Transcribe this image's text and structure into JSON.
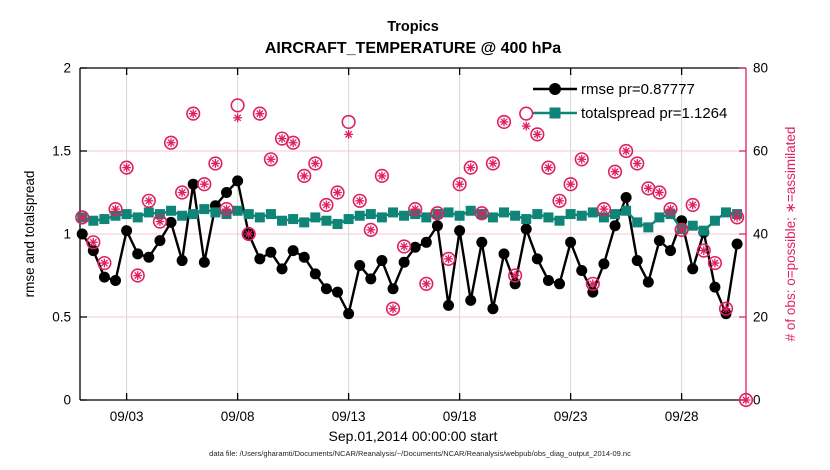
{
  "chart_data": {
    "type": "line",
    "title": "Tropics",
    "subtitle": "AIRCRAFT_TEMPERATURE @ 400 hPa",
    "xlabel": "Sep.01,2014 00:00:00 start",
    "ylabel_left": "rmse and totalspread",
    "ylabel_right": "# of obs: o=possible; ∗=assimilated",
    "footer": "data file: /Users/gharamti/Documents/NCAR/Reanalysis/~/Documents/NCAR/Reanalysis/webpub/obs_diag_output_2014-09.nc",
    "grid": true,
    "legend_position": "top-right-inside",
    "legend": [
      {
        "label": "rmse pr=0.87777",
        "marker": "circle",
        "color": "#000000"
      },
      {
        "label": "totalspread pr=1.1264",
        "marker": "square",
        "color": "#0e8577"
      }
    ],
    "x_axis": {
      "tick_labels": [
        "09/03",
        "09/08",
        "09/13",
        "09/18",
        "09/23",
        "09/28"
      ],
      "tick_days": [
        3,
        8,
        13,
        18,
        23,
        28
      ],
      "range_days": [
        0.9,
        30.9
      ]
    },
    "y_axis_left": {
      "ylim": [
        0,
        2
      ],
      "tick_labels": [
        "0",
        "0.5",
        "1",
        "1.5",
        "2"
      ],
      "tick_vals": [
        0,
        0.5,
        1,
        1.5,
        2
      ]
    },
    "y_axis_right": {
      "ylim": [
        0,
        80
      ],
      "tick_labels": [
        "0",
        "20",
        "40",
        "60",
        "80"
      ],
      "tick_vals": [
        0,
        20,
        40,
        60,
        80
      ]
    },
    "series_days": [
      1,
      1.5,
      2,
      2.5,
      3,
      3.5,
      4,
      4.5,
      5,
      5.5,
      6,
      6.5,
      7,
      7.5,
      8,
      8.5,
      9,
      9.5,
      10,
      10.5,
      11,
      11.5,
      12,
      12.5,
      13,
      13.5,
      14,
      14.5,
      15,
      15.5,
      16,
      16.5,
      17,
      17.5,
      18,
      18.5,
      19,
      19.5,
      20,
      20.5,
      21,
      21.5,
      22,
      22.5,
      23,
      23.5,
      24,
      24.5,
      25,
      25.5,
      26,
      26.5,
      27,
      27.5,
      28,
      28.5,
      29,
      29.5,
      30,
      30.5
    ],
    "series": [
      {
        "name": "rmse",
        "color": "#000000",
        "marker": "circle",
        "values": [
          1.0,
          0.9,
          0.74,
          0.72,
          1.02,
          0.88,
          0.86,
          0.96,
          1.07,
          0.84,
          1.3,
          0.83,
          1.17,
          1.25,
          1.32,
          1.0,
          0.85,
          0.89,
          0.79,
          0.9,
          0.86,
          0.76,
          0.67,
          0.65,
          0.52,
          0.81,
          0.73,
          0.84,
          0.67,
          0.83,
          0.92,
          0.95,
          1.05,
          0.57,
          1.02,
          0.6,
          0.95,
          0.55,
          0.88,
          0.7,
          1.03,
          0.85,
          0.72,
          0.7,
          0.95,
          0.78,
          0.65,
          0.82,
          1.05,
          1.22,
          0.84,
          0.71,
          0.96,
          0.9,
          1.08,
          0.79,
          1.01,
          0.68,
          0.52,
          0.94
        ]
      },
      {
        "name": "totalspread",
        "color": "#0e8577",
        "marker": "square",
        "values": [
          1.1,
          1.08,
          1.09,
          1.11,
          1.12,
          1.1,
          1.13,
          1.12,
          1.14,
          1.11,
          1.12,
          1.15,
          1.13,
          1.12,
          1.14,
          1.12,
          1.1,
          1.12,
          1.08,
          1.09,
          1.07,
          1.1,
          1.08,
          1.06,
          1.09,
          1.11,
          1.12,
          1.1,
          1.13,
          1.11,
          1.12,
          1.1,
          1.12,
          1.13,
          1.11,
          1.14,
          1.12,
          1.1,
          1.13,
          1.11,
          1.09,
          1.12,
          1.1,
          1.08,
          1.12,
          1.11,
          1.13,
          1.1,
          1.12,
          1.14,
          1.07,
          1.04,
          1.1,
          1.12,
          1.03,
          1.05,
          1.02,
          1.08,
          1.13,
          1.12
        ]
      }
    ],
    "obs": {
      "color": "#df205f",
      "possible_marker": "circle",
      "assimilated_marker": "asterisk",
      "days": [
        1,
        1.5,
        2,
        2.5,
        3,
        3.5,
        4,
        4.5,
        5,
        5.5,
        6,
        6.5,
        7,
        7.5,
        8,
        8.5,
        9,
        9.5,
        10,
        10.5,
        11,
        11.5,
        12,
        12.5,
        13,
        13.5,
        14,
        14.5,
        15,
        15.5,
        16,
        16.5,
        17,
        17.5,
        18,
        18.5,
        19,
        19.5,
        20,
        20.5,
        21,
        21.5,
        22,
        22.5,
        23,
        23.5,
        24,
        24.5,
        25,
        25.5,
        26,
        26.5,
        27,
        27.5,
        28,
        28.5,
        29,
        29.5,
        30,
        30.5,
        30.9
      ],
      "possible": [
        44,
        38,
        33,
        46,
        56,
        30,
        48,
        43,
        62,
        50,
        69,
        52,
        57,
        46,
        71,
        40,
        69,
        58,
        63,
        62,
        54,
        57,
        47,
        50,
        67,
        48,
        41,
        54,
        22,
        37,
        46,
        28,
        45,
        34,
        52,
        56,
        45,
        57,
        67,
        30,
        69,
        64,
        56,
        48,
        52,
        58,
        28,
        46,
        55,
        60,
        57,
        51,
        50,
        46,
        41,
        47,
        36,
        33,
        22,
        44,
        0
      ],
      "assimilated": [
        44,
        38,
        33,
        46,
        56,
        30,
        48,
        43,
        62,
        50,
        69,
        52,
        57,
        46,
        68,
        40,
        69,
        58,
        63,
        62,
        54,
        57,
        47,
        50,
        64,
        48,
        41,
        54,
        22,
        37,
        46,
        28,
        45,
        34,
        52,
        56,
        45,
        57,
        67,
        30,
        66,
        64,
        56,
        48,
        52,
        58,
        28,
        46,
        55,
        60,
        57,
        51,
        50,
        46,
        41,
        47,
        36,
        33,
        22,
        44,
        0
      ]
    },
    "colors": {
      "rmse": "#000000",
      "totalspread": "#0e8577",
      "obs": "#df205f",
      "grid_horizontal": "#f2c9d5",
      "grid_vertical": "#d6d6d6",
      "axis_left": "#000000",
      "axis_right": "#df205f",
      "background": "#ffffff"
    }
  }
}
